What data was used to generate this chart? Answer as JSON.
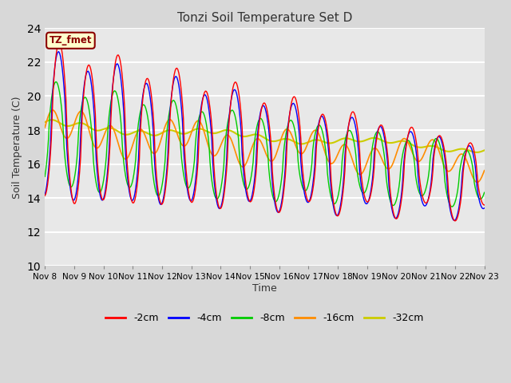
{
  "title": "Tonzi Soil Temperature Set D",
  "xlabel": "Time",
  "ylabel": "Soil Temperature (C)",
  "annotation": "TZ_fmet",
  "annotation_color": "#8B0000",
  "annotation_bg": "#FFFFCC",
  "annotation_border": "#8B0000",
  "ylim": [
    10,
    24
  ],
  "yticks": [
    10,
    12,
    14,
    16,
    18,
    20,
    22,
    24
  ],
  "xtick_labels": [
    "Nov 8",
    "Nov 9",
    "Nov 10",
    "Nov 11",
    "Nov 12",
    "Nov 13",
    "Nov 14",
    "Nov 15",
    "Nov 16",
    "Nov 17",
    "Nov 18",
    "Nov 19",
    "Nov 20",
    "Nov 21",
    "Nov 22",
    "Nov 23"
  ],
  "series_colors": [
    "#FF0000",
    "#0000FF",
    "#00CC00",
    "#FF8C00",
    "#CCCC00"
  ],
  "series_labels": [
    "-2cm",
    "-4cm",
    "-8cm",
    "-16cm",
    "-32cm"
  ],
  "background_color": "#D8D8D8",
  "plot_bg_color": "#E8E8E8",
  "grid_color": "#FFFFFF",
  "n_points": 480
}
